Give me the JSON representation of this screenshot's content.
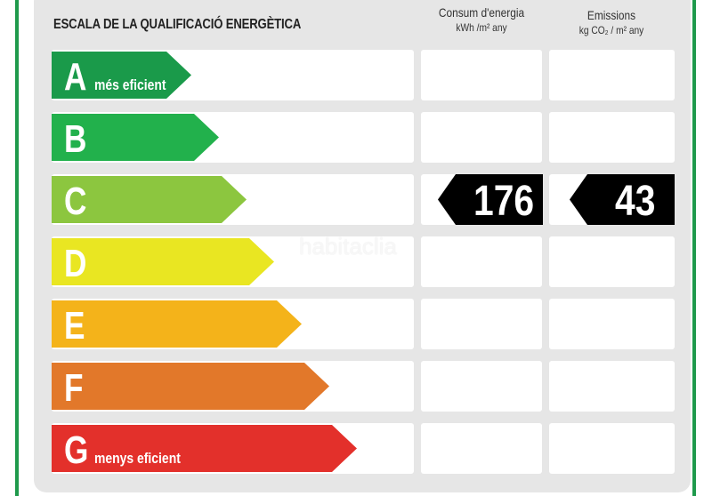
{
  "title": "ESCALA DE LA QUALIFICACIÓ ENERGÈTICA",
  "columns": {
    "consumption": {
      "label": "Consum d'energia",
      "unit": "kWh /m² any"
    },
    "emissions": {
      "label": "Emissions",
      "unit": "kg CO₂ / m² any"
    }
  },
  "ratings": [
    {
      "letter": "A",
      "sub": "més eficient",
      "color": "#1a9a4a"
    },
    {
      "letter": "B",
      "sub": "",
      "color": "#22b14c"
    },
    {
      "letter": "C",
      "sub": "",
      "color": "#8cc63f"
    },
    {
      "letter": "D",
      "sub": "",
      "color": "#e9e622"
    },
    {
      "letter": "E",
      "sub": "",
      "color": "#f4b31a"
    },
    {
      "letter": "F",
      "sub": "",
      "color": "#e2782a"
    },
    {
      "letter": "G",
      "sub": "menys eficient",
      "color": "#e3302b"
    }
  ],
  "current": {
    "rating": "C",
    "consumption": "176",
    "emissions": "43"
  },
  "watermark": "habitaclia"
}
